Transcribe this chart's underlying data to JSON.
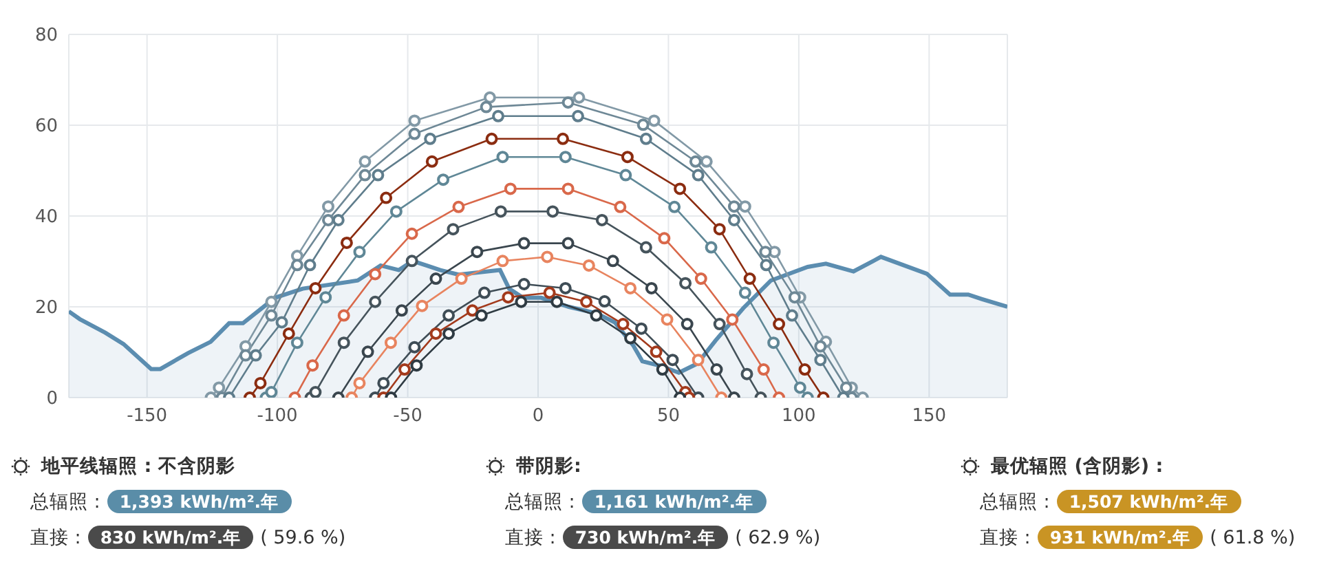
{
  "chart_data": [
    {
      "type": "line",
      "xlim": [
        -180,
        180
      ],
      "xticks": [
        -150,
        -100,
        -50,
        0,
        50,
        100,
        150
      ],
      "ylim": [
        0,
        80
      ],
      "yticks": [
        0,
        20,
        40,
        60,
        80
      ],
      "grid": true,
      "marker": "circle",
      "series": [
        {
          "type": "area",
          "marker": "none",
          "color": "#5b8db0",
          "x": [
            -180,
            -175.8,
            -166,
            -159,
            -148.4,
            -144.9,
            -134.3,
            -125.6,
            -118.5,
            -113.2,
            -100.9,
            -90.3,
            -69.2,
            -60.4,
            -53.4,
            -48.1,
            -42.8,
            -37.5,
            -30.5,
            -14.6,
            -11.1,
            -5.8,
            1.2,
            11.8,
            22.3,
            29.4,
            36.5,
            40,
            47,
            54,
            61.1,
            68.1,
            78.7,
            89.3,
            103.4,
            110.4,
            121,
            131.5,
            149.1,
            158,
            165,
            170.3,
            180
          ],
          "values": [
            19,
            17.3,
            14.3,
            11.8,
            6.3,
            6.3,
            9.8,
            12.3,
            16.4,
            16.4,
            22,
            24,
            25.8,
            29.1,
            28.1,
            30.1,
            29.1,
            28.1,
            27.1,
            28.1,
            24,
            22,
            22,
            20,
            18.6,
            16.6,
            11.5,
            8,
            7,
            5.5,
            7.5,
            12.6,
            19.7,
            25.8,
            28.8,
            29.5,
            27.8,
            31,
            27.3,
            22.7,
            22.7,
            21.7,
            20
          ]
        },
        {
          "color": "#8299a6",
          "x": [
            -125.5,
            -122.4,
            -112.2,
            -102.3,
            -92.4,
            -80.5,
            -66.4,
            -47.4,
            -18.5,
            15.7,
            44.5,
            64.6,
            79.4,
            90.7,
            100.5,
            110.4,
            120.3,
            124.5
          ],
          "values": [
            0,
            2.2,
            11.3,
            21.1,
            31.2,
            42.1,
            52,
            61,
            66.1,
            66.1,
            61,
            52,
            42.1,
            32.1,
            22.1,
            12.3,
            2.2,
            0
          ]
        },
        {
          "color": "#6e8896",
          "x": [
            -121.3,
            -112.2,
            -102.3,
            -92.4,
            -80.5,
            -66.4,
            -47.4,
            -19.9,
            11.5,
            40.3,
            60.4,
            75.2,
            87.2,
            98.4,
            108.3,
            118.2,
            120.3
          ],
          "values": [
            0,
            9.3,
            18.1,
            29.2,
            39.1,
            49,
            58.1,
            64,
            65,
            60.1,
            52,
            42.1,
            32.1,
            22.1,
            11.3,
            2.2,
            0
          ]
        },
        {
          "color": "#5f7d8c",
          "x": [
            -118.5,
            -108.3,
            -98.3,
            -87.5,
            -76.6,
            -61.4,
            -41.4,
            -15.3,
            15.3,
            41.4,
            61.4,
            75.2,
            87.5,
            97.4,
            108.3,
            117.1
          ],
          "values": [
            0,
            9.3,
            16.6,
            29.2,
            39.1,
            49,
            57,
            62,
            62,
            57,
            49,
            39.1,
            29.2,
            18.1,
            8.3,
            0
          ]
        },
        {
          "color": "#8b2c10",
          "x": [
            -110.6,
            -106.5,
            -95.6,
            -85.4,
            -73.4,
            -58.3,
            -40.7,
            -17.8,
            9.5,
            34.3,
            54.4,
            69.6,
            81.2,
            92.4,
            102.3,
            109.4
          ],
          "values": [
            0,
            3.2,
            14.1,
            24.1,
            34.1,
            44,
            52,
            57,
            57,
            53,
            46,
            37.1,
            26.2,
            16.2,
            6.2,
            0
          ]
        },
        {
          "color": "#5f8796",
          "x": [
            -104.4,
            -102.3,
            -92.4,
            -81.5,
            -68.5,
            -54.4,
            -36.4,
            -13.6,
            10.5,
            33.6,
            52.3,
            66.4,
            79.4,
            90.3,
            100.5,
            103.4
          ],
          "values": [
            0,
            1.2,
            12.1,
            22.1,
            32.1,
            41,
            48,
            53,
            53,
            49,
            42,
            33.1,
            23.1,
            12.1,
            2.2,
            0
          ]
        },
        {
          "color": "#d9684a",
          "x": [
            -93.3,
            -86.5,
            -74.5,
            -62.5,
            -48.4,
            -30.5,
            -10.6,
            11.5,
            31.5,
            48.4,
            62.5,
            74.5,
            86.5,
            92.4
          ],
          "values": [
            0,
            7.1,
            18.1,
            27.2,
            36.1,
            42,
            46,
            46,
            42,
            35.1,
            26.2,
            17.2,
            6.2,
            0
          ]
        },
        {
          "color": "#46545c",
          "x": [
            -87.2,
            -85.4,
            -74.5,
            -62.5,
            -48.4,
            -32.6,
            -14.3,
            5.6,
            24.5,
            41.4,
            56.5,
            69.6,
            80.1,
            85.4
          ],
          "values": [
            0,
            1.2,
            12.1,
            21.1,
            30.1,
            37.1,
            41,
            41,
            39.1,
            33.1,
            25.2,
            16.2,
            5.2,
            0
          ]
        },
        {
          "color": "#3a464e",
          "x": [
            -76.6,
            -65.3,
            -52.3,
            -39.2,
            -23.4,
            -5.4,
            11.5,
            28.7,
            43.5,
            57.2,
            68.5,
            75.2
          ],
          "values": [
            0,
            10.1,
            19.2,
            26.2,
            32.1,
            34,
            34,
            30.1,
            24.1,
            16.2,
            6.2,
            0
          ]
        },
        {
          "color": "#e8845f",
          "x": [
            -71.5,
            -68.5,
            -56.5,
            -44.5,
            -29.4,
            -13.6,
            3.5,
            19.5,
            35.4,
            49.5,
            61.4,
            70.3
          ],
          "values": [
            0,
            3.2,
            12.1,
            20.2,
            26.2,
            30.1,
            31,
            29.1,
            24.1,
            17.2,
            8.3,
            0
          ]
        },
        {
          "color": "#3f4d56",
          "x": [
            -62.5,
            -59.3,
            -47.4,
            -34.3,
            -20.6,
            -5.4,
            10.5,
            25.5,
            39.6,
            51.6,
            61.4
          ],
          "values": [
            0,
            3.2,
            11.1,
            18.1,
            23.1,
            25,
            24.1,
            21.2,
            15.2,
            8.3,
            0
          ]
        },
        {
          "color": "#a33a1c",
          "x": [
            -59.3,
            -51.2,
            -39.2,
            -25.2,
            -11.5,
            4.4,
            18.5,
            32.6,
            45.3,
            56.5,
            57.9
          ],
          "values": [
            0,
            6.2,
            14.1,
            19.2,
            22.1,
            23.1,
            21.1,
            16.2,
            10.1,
            1.2,
            0
          ]
        },
        {
          "color": "#2f3b43",
          "x": [
            -56.4,
            -46.6,
            -34.3,
            -21.7,
            -6.5,
            7.2,
            22.3,
            35.4,
            47.7,
            54.4
          ],
          "values": [
            0,
            7.1,
            14.1,
            18.1,
            21.1,
            21.1,
            18.1,
            13.1,
            6.2,
            0
          ]
        }
      ]
    },
    {
      "type": "other",
      "annotations": [
        "地平线辐照 : 不含阴影",
        "总辐照 :",
        "1,393 kWh/m².年",
        "直接 :",
        "830 kWh/m².年",
        "( 59.6 %)",
        "带阴影:",
        "总辐照 :",
        "1,161 kWh/m².年",
        "直接 :",
        "730 kWh/m².年",
        "( 62.9 %)",
        "最优辐照 (含阴影) :",
        "总辐照 :",
        "1,507 kWh/m².年",
        "直接 :",
        "931 kWh/m².年",
        "( 61.8 %)"
      ]
    }
  ]
}
